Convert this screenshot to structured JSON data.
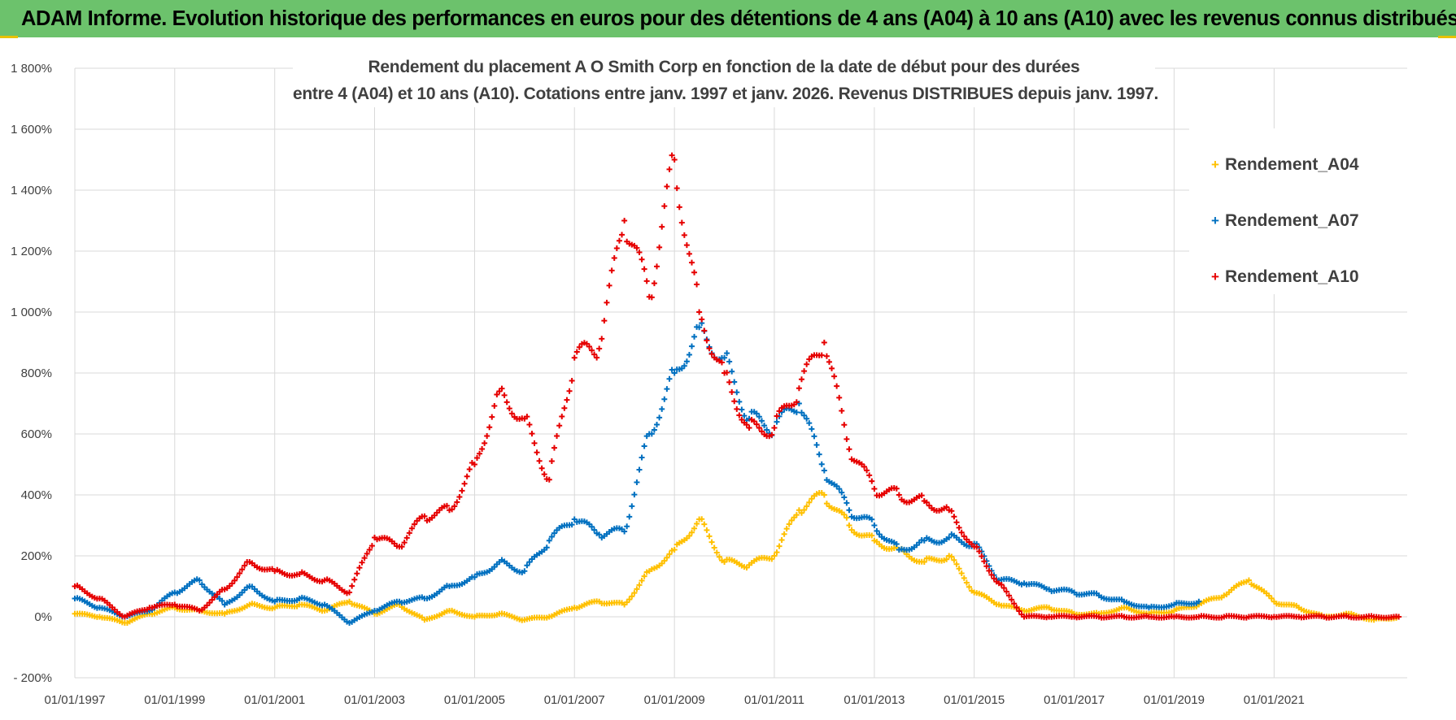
{
  "header": {
    "banner_title": "ADAM Informe. Evolution historique des performances en euros pour des détentions de 4 ans (A04) à 10 ans (A10) avec les revenus connus distribués",
    "banner_color": "#6cc26c"
  },
  "chart_data": {
    "type": "scatter",
    "title_line1": "Rendement du placement A O Smith Corp en fonction de la date de début pour des durées",
    "title_line2": "entre 4 (A04) et 10 ans (A10).  Cotations entre janv. 1997 et janv. 2026. Revenus DISTRIBUES  depuis janv. 1997.",
    "xlabel": "",
    "ylabel": "",
    "x_range": [
      "1997-01-01",
      "2023-09-01"
    ],
    "ylim": [
      -200,
      1800
    ],
    "y_ticks": [
      {
        "value": -200,
        "label": "- 200%"
      },
      {
        "value": 0,
        "label": "0%"
      },
      {
        "value": 200,
        "label": "200%"
      },
      {
        "value": 400,
        "label": "400%"
      },
      {
        "value": 600,
        "label": "600%"
      },
      {
        "value": 800,
        "label": "800%"
      },
      {
        "value": 1000,
        "label": "1 000%"
      },
      {
        "value": 1200,
        "label": "1 200%"
      },
      {
        "value": 1400,
        "label": "1 400%"
      },
      {
        "value": 1600,
        "label": "1 600%"
      },
      {
        "value": 1800,
        "label": "1 800%"
      }
    ],
    "x_ticks": [
      "01/01/1997",
      "01/01/1999",
      "01/01/2001",
      "01/01/2003",
      "01/01/2005",
      "01/01/2007",
      "01/01/2009",
      "01/01/2011",
      "01/01/2013",
      "01/01/2015",
      "01/01/2017",
      "01/01/2019",
      "01/01/2021"
    ],
    "grid": true,
    "legend_position": "right",
    "marker": "+",
    "series": [
      {
        "name": "Rendement_A04",
        "color": "#ffc000",
        "x": [
          "1997-01-01",
          "1997-07-01",
          "1998-01-01",
          "1998-07-01",
          "1999-01-01",
          "1999-07-01",
          "2000-01-01",
          "2000-07-01",
          "2001-01-01",
          "2001-07-01",
          "2002-01-01",
          "2002-07-01",
          "2003-01-01",
          "2003-07-01",
          "2004-01-01",
          "2004-07-01",
          "2005-01-01",
          "2005-07-01",
          "2006-01-01",
          "2006-07-01",
          "2007-01-01",
          "2007-07-01",
          "2008-01-01",
          "2008-07-01",
          "2009-01-01",
          "2009-07-01",
          "2010-01-01",
          "2010-07-01",
          "2011-01-01",
          "2011-07-01",
          "2012-01-01",
          "2012-07-01",
          "2013-01-01",
          "2013-07-01",
          "2014-01-01",
          "2014-07-01",
          "2015-01-01",
          "2015-07-01",
          "2016-01-01",
          "2016-07-01",
          "2017-01-01",
          "2017-07-01",
          "2018-01-01",
          "2018-07-01",
          "2019-01-01",
          "2019-07-01",
          "2020-01-01",
          "2020-07-01",
          "2021-01-01",
          "2021-07-01",
          "2022-01-01",
          "2022-07-01",
          "2023-01-01",
          "2023-07-01"
        ],
        "y": [
          10,
          0,
          -20,
          10,
          30,
          20,
          10,
          40,
          30,
          40,
          20,
          50,
          10,
          40,
          -10,
          20,
          0,
          10,
          -10,
          0,
          30,
          50,
          40,
          150,
          220,
          320,
          180,
          170,
          200,
          350,
          400,
          300,
          250,
          220,
          180,
          200,
          80,
          40,
          20,
          30,
          10,
          10,
          30,
          10,
          20,
          40,
          70,
          120,
          50,
          30,
          0,
          10,
          -10,
          0
        ]
      },
      {
        "name": "Rendement_A07",
        "color": "#0070c0",
        "x": [
          "1997-01-01",
          "1997-07-01",
          "1998-01-01",
          "1998-07-01",
          "1999-01-01",
          "1999-07-01",
          "2000-01-01",
          "2000-07-01",
          "2001-01-01",
          "2001-07-01",
          "2002-01-01",
          "2002-07-01",
          "2003-01-01",
          "2003-07-01",
          "2004-01-01",
          "2004-07-01",
          "2005-01-01",
          "2005-07-01",
          "2006-01-01",
          "2006-07-01",
          "2007-01-01",
          "2007-07-01",
          "2008-01-01",
          "2008-07-01",
          "2009-01-01",
          "2009-07-01",
          "2010-01-01",
          "2010-07-01",
          "2011-01-01",
          "2011-07-01",
          "2012-01-01",
          "2012-07-01",
          "2013-01-01",
          "2013-07-01",
          "2014-01-01",
          "2014-07-01",
          "2015-01-01",
          "2015-07-01",
          "2016-01-01",
          "2016-07-01",
          "2017-01-01",
          "2017-07-01",
          "2018-01-01",
          "2018-07-01",
          "2019-01-01",
          "2019-07-01"
        ],
        "y": [
          60,
          30,
          0,
          20,
          80,
          120,
          40,
          100,
          50,
          60,
          40,
          -20,
          20,
          50,
          60,
          100,
          130,
          180,
          150,
          250,
          320,
          270,
          280,
          600,
          800,
          950,
          850,
          650,
          620,
          700,
          480,
          350,
          300,
          220,
          250,
          260,
          240,
          120,
          110,
          90,
          80,
          70,
          50,
          30,
          40,
          50
        ]
      },
      {
        "name": "Rendement_A10",
        "color": "#e60000",
        "x": [
          "1997-01-01",
          "1997-07-01",
          "1998-01-01",
          "1998-07-01",
          "1999-01-01",
          "1999-07-01",
          "2000-01-01",
          "2000-07-01",
          "2001-01-01",
          "2001-07-01",
          "2002-01-01",
          "2002-07-01",
          "2003-01-01",
          "2003-07-01",
          "2004-01-01",
          "2004-07-01",
          "2005-01-01",
          "2005-07-01",
          "2006-01-01",
          "2006-07-01",
          "2007-01-01",
          "2007-07-01",
          "2008-01-01",
          "2008-07-01",
          "2009-01-01",
          "2009-07-01",
          "2010-01-01",
          "2010-07-01",
          "2011-01-01",
          "2011-07-01",
          "2012-01-01",
          "2012-07-01",
          "2013-01-01",
          "2013-07-01",
          "2014-01-01",
          "2014-07-01",
          "2015-01-01",
          "2015-07-01",
          "2016-01-01",
          "2016-07-01",
          "2017-01-01",
          "2017-07-01",
          "2018-01-01",
          "2018-07-01",
          "2019-01-01",
          "2019-07-01",
          "2020-01-01",
          "2020-07-01",
          "2021-01-01",
          "2021-07-01",
          "2022-01-01",
          "2022-07-01",
          "2023-01-01",
          "2023-07-01"
        ],
        "y": [
          100,
          60,
          0,
          30,
          40,
          20,
          90,
          180,
          150,
          140,
          120,
          80,
          260,
          230,
          330,
          350,
          500,
          740,
          650,
          450,
          850,
          880,
          1300,
          1050,
          1500,
          1000,
          800,
          620,
          620,
          750,
          900,
          550,
          420,
          400,
          380,
          350,
          230,
          110,
          0,
          0,
          0,
          0,
          0,
          0,
          0,
          0,
          0,
          0,
          0,
          0,
          0,
          0,
          0,
          0
        ]
      }
    ]
  }
}
